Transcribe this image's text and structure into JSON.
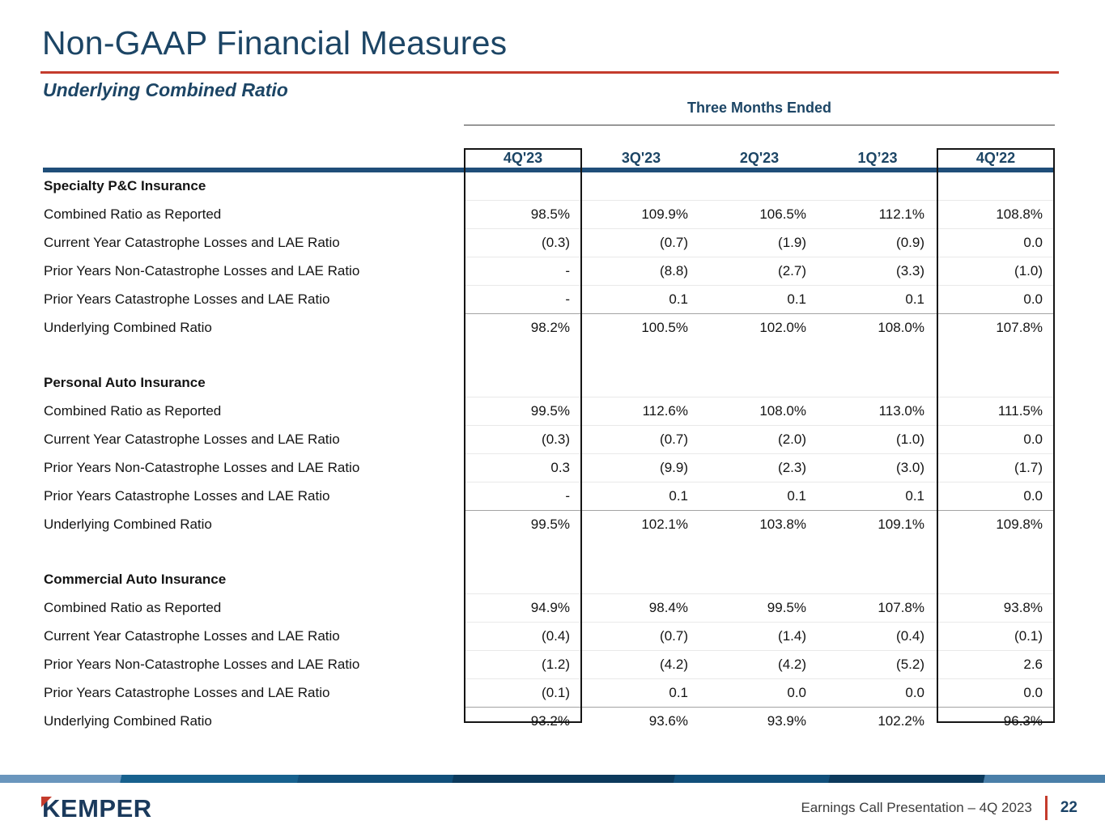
{
  "slide": {
    "title": "Non-GAAP Financial Measures",
    "subtitle": "Underlying Combined Ratio",
    "period_header": "Three Months Ended",
    "columns": [
      "4Q'23",
      "3Q'23",
      "2Q'23",
      "1Q’23",
      "4Q'22"
    ],
    "highlighted_columns": [
      "4Q'23",
      "4Q'22"
    ],
    "sections": [
      {
        "name": "Specialty P&C Insurance",
        "rows": [
          {
            "label": "Combined Ratio as Reported",
            "values": [
              "98.5%",
              "109.9%",
              "106.5%",
              "112.1%",
              "108.8%"
            ]
          },
          {
            "label": "Current Year Catastrophe Losses and LAE Ratio",
            "values": [
              "(0.3)",
              "(0.7)",
              "(1.9)",
              "(0.9)",
              "0.0"
            ]
          },
          {
            "label": "Prior Years Non-Catastrophe Losses and LAE Ratio",
            "values": [
              "-",
              "(8.8)",
              "(2.7)",
              "(3.3)",
              "(1.0)"
            ]
          },
          {
            "label": "Prior Years Catastrophe Losses and LAE Ratio",
            "values": [
              "-",
              "0.1",
              "0.1",
              "0.1",
              "0.0"
            ]
          },
          {
            "label": "Underlying Combined Ratio",
            "values": [
              "98.2%",
              "100.5%",
              "102.0%",
              "108.0%",
              "107.8%"
            ]
          }
        ]
      },
      {
        "name": "Personal Auto Insurance",
        "rows": [
          {
            "label": "Combined Ratio as Reported",
            "values": [
              "99.5%",
              "112.6%",
              "108.0%",
              "113.0%",
              "111.5%"
            ]
          },
          {
            "label": "Current Year Catastrophe Losses and LAE Ratio",
            "values": [
              "(0.3)",
              "(0.7)",
              "(2.0)",
              "(1.0)",
              "0.0"
            ]
          },
          {
            "label": "Prior Years Non-Catastrophe Losses and LAE Ratio",
            "values": [
              "0.3",
              "(9.9)",
              "(2.3)",
              "(3.0)",
              "(1.7)"
            ]
          },
          {
            "label": "Prior Years Catastrophe Losses and LAE Ratio",
            "values": [
              "-",
              "0.1",
              "0.1",
              "0.1",
              "0.0"
            ]
          },
          {
            "label": "Underlying Combined Ratio",
            "values": [
              "99.5%",
              "102.1%",
              "103.8%",
              "109.1%",
              "109.8%"
            ]
          }
        ]
      },
      {
        "name": "Commercial Auto Insurance",
        "rows": [
          {
            "label": "Combined Ratio as Reported",
            "values": [
              "94.9%",
              "98.4%",
              "99.5%",
              "107.8%",
              "93.8%"
            ]
          },
          {
            "label": "Current Year Catastrophe Losses and LAE Ratio",
            "values": [
              "(0.4)",
              "(0.7)",
              "(1.4)",
              "(0.4)",
              "(0.1)"
            ]
          },
          {
            "label": "Prior Years Non-Catastrophe Losses and LAE Ratio",
            "values": [
              "(1.2)",
              "(4.2)",
              "(4.2)",
              "(5.2)",
              "2.6"
            ]
          },
          {
            "label": "Prior Years Catastrophe Losses and LAE Ratio",
            "values": [
              "(0.1)",
              "0.1",
              "0.0",
              "0.0",
              "0.0"
            ]
          },
          {
            "label": "Underlying Combined Ratio",
            "values": [
              "93.2%",
              "93.6%",
              "93.9%",
              "102.2%",
              "96.3%"
            ]
          }
        ]
      }
    ],
    "footer": {
      "logo_text": "KEMPER",
      "caption": "Earnings Call Presentation – 4Q 2023",
      "page_number": "22"
    },
    "colors": {
      "navy_text": "#1c4565",
      "table_rule_navy": "#1f4e79",
      "accent_red": "#c43b2c",
      "highlight_box_border": "#151515",
      "footer_bar_blues": [
        "#6a96bd",
        "#17618e",
        "#114f7a",
        "#0c3a5c",
        "#114f7a",
        "#0c3a5c",
        "#4a7fa9"
      ]
    }
  }
}
